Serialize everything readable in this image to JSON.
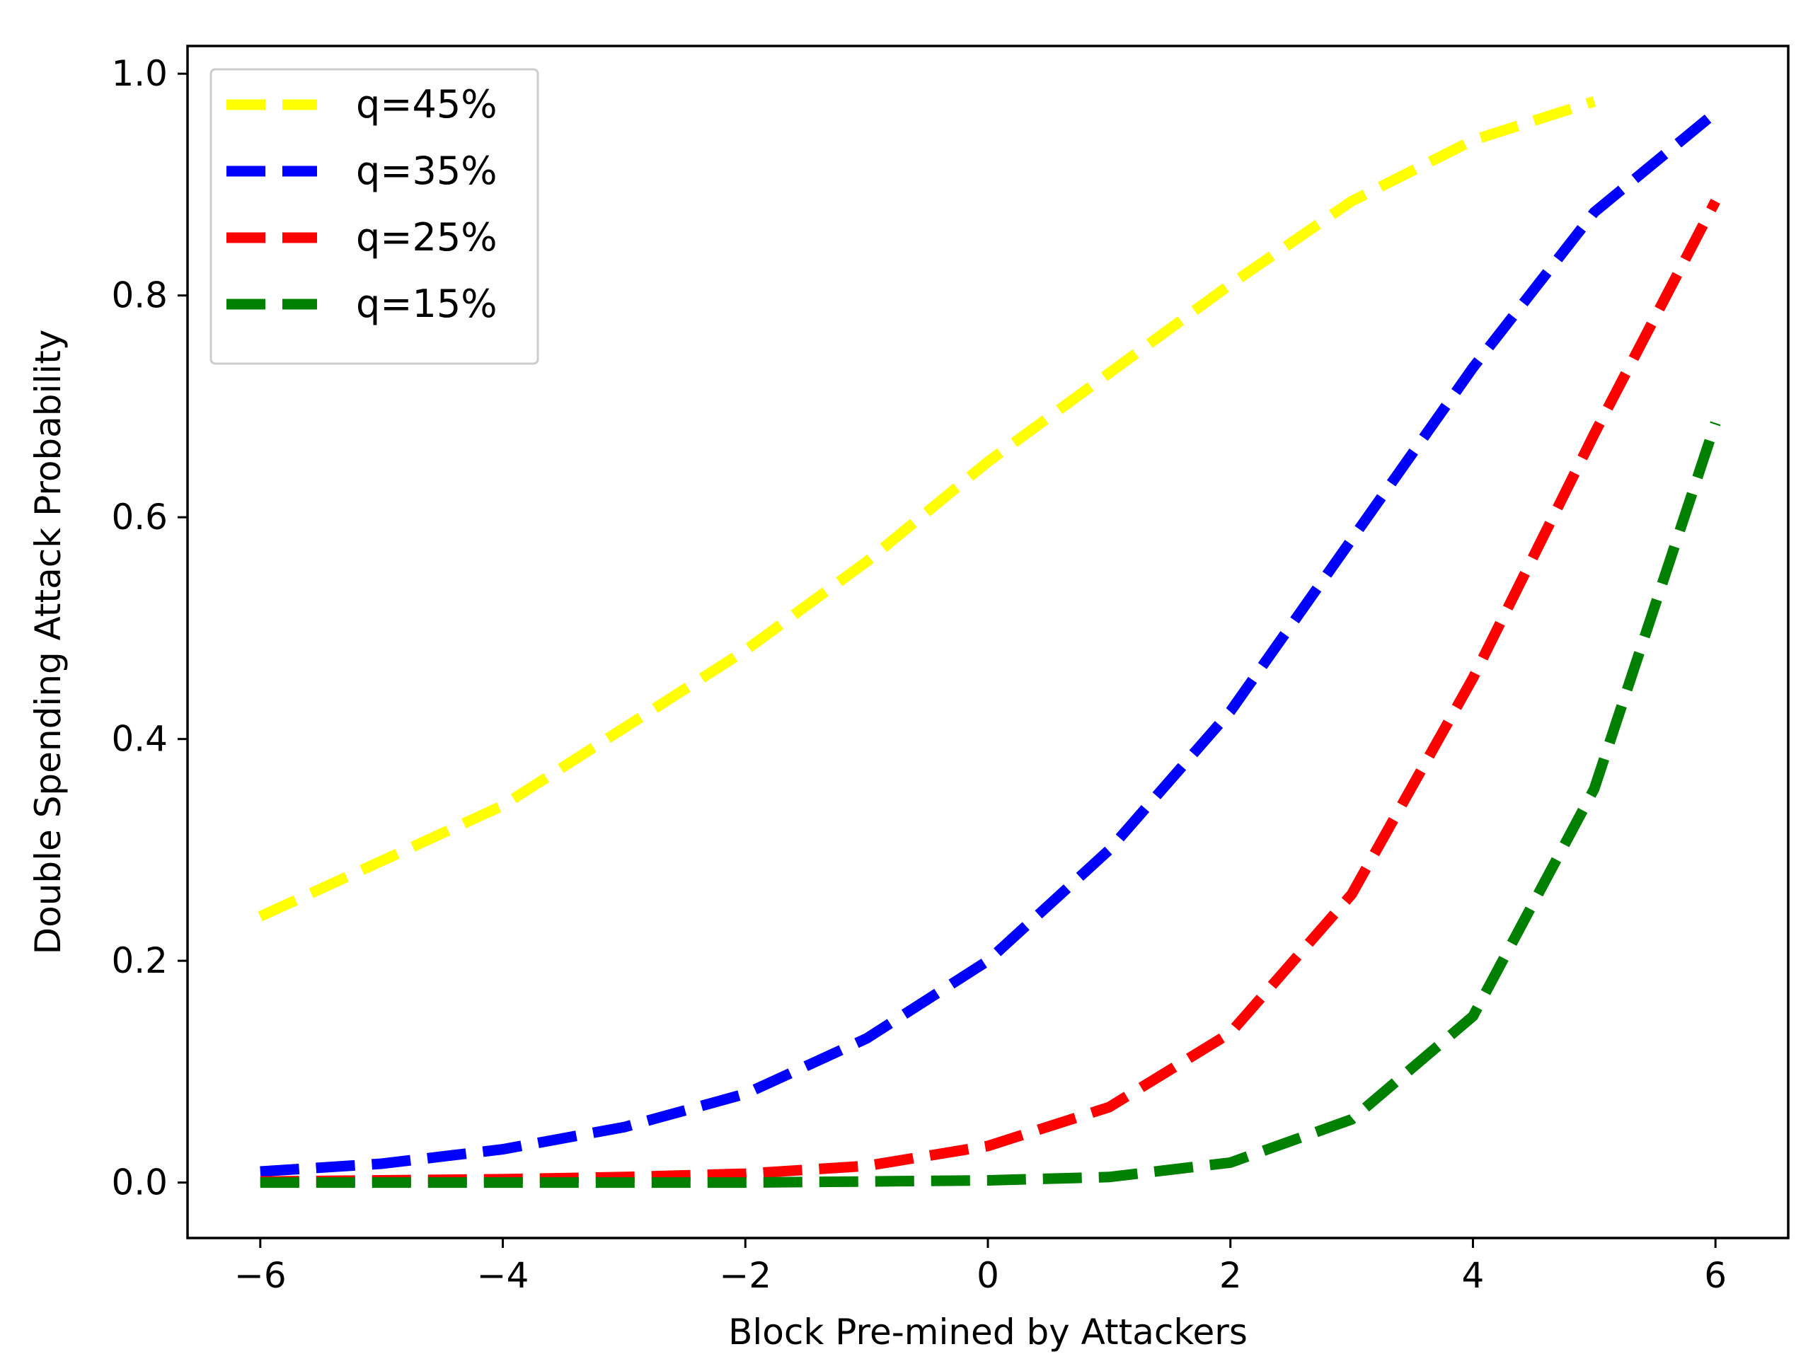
{
  "chart_data": {
    "type": "line",
    "title": "",
    "xlabel": "Block Pre-mined by Attackers",
    "ylabel": "Double Spending Attack Probability",
    "xlim": [
      -6.6,
      6.6
    ],
    "ylim": [
      -0.05,
      1.025
    ],
    "x_ticks": [
      -6,
      -4,
      -2,
      0,
      2,
      4,
      6
    ],
    "x_tick_labels": [
      "−6",
      "−4",
      "−2",
      "0",
      "2",
      "4",
      "6"
    ],
    "y_ticks": [
      0.0,
      0.2,
      0.4,
      0.6,
      0.8,
      1.0
    ],
    "y_tick_labels": [
      "0.0",
      "0.2",
      "0.4",
      "0.6",
      "0.8",
      "1.0"
    ],
    "grid": false,
    "legend_position": "top-left",
    "series": [
      {
        "name": "q=45%",
        "color": "#ffff00",
        "x": [
          -6,
          -5,
          -4,
          -3,
          -2,
          -1,
          0,
          1,
          2,
          3,
          4,
          5
        ],
        "values": [
          0.24,
          0.29,
          0.34,
          0.41,
          0.48,
          0.56,
          0.65,
          0.73,
          0.81,
          0.885,
          0.94,
          0.975
        ]
      },
      {
        "name": "q=35%",
        "color": "#0000ff",
        "x": [
          -6,
          -5,
          -4,
          -3,
          -2,
          -1,
          0,
          1,
          2,
          3,
          4,
          5,
          6
        ],
        "values": [
          0.01,
          0.017,
          0.03,
          0.05,
          0.08,
          0.13,
          0.2,
          0.3,
          0.425,
          0.58,
          0.735,
          0.875,
          0.965
        ]
      },
      {
        "name": "q=25%",
        "color": "#ff0000",
        "x": [
          -6,
          -5,
          -4,
          -3,
          -2,
          -1,
          0,
          1,
          2,
          3,
          4,
          5,
          6
        ],
        "values": [
          0.001,
          0.002,
          0.003,
          0.005,
          0.008,
          0.015,
          0.033,
          0.068,
          0.135,
          0.26,
          0.455,
          0.675,
          0.885
        ]
      },
      {
        "name": "q=15%",
        "color": "#008000",
        "x": [
          -6,
          -5,
          -4,
          -3,
          -2,
          -1,
          0,
          1,
          2,
          3,
          4,
          5,
          6
        ],
        "values": [
          0.0,
          0.0,
          0.0,
          0.0,
          0.0,
          0.001,
          0.002,
          0.005,
          0.018,
          0.057,
          0.15,
          0.355,
          0.685
        ]
      }
    ]
  }
}
